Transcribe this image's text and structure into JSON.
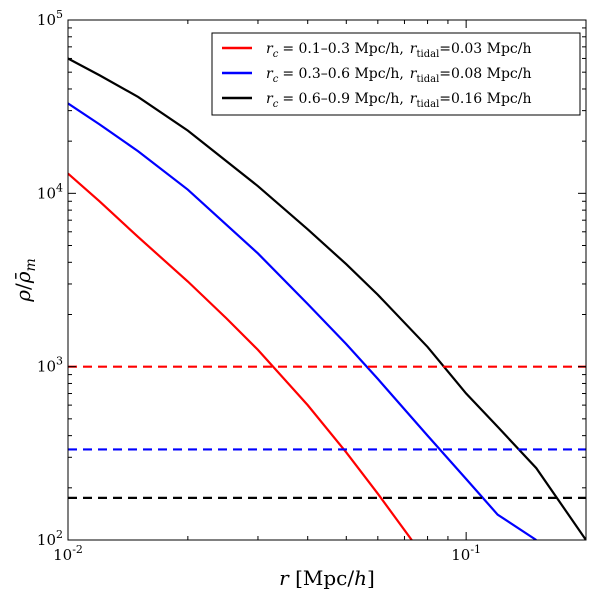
{
  "chart_data": {
    "type": "line",
    "xscale": "log",
    "yscale": "log",
    "xlim": [
      0.01,
      0.2
    ],
    "ylim": [
      100,
      100000
    ],
    "xlabel": "r [Mpc/h]",
    "ylabel": "ρ/ρ̄_m",
    "x_tick_labels": [
      {
        "value": 0.01,
        "base": "10",
        "exp": "-2"
      },
      {
        "value": 0.1,
        "base": "10",
        "exp": "-1"
      }
    ],
    "y_tick_labels": [
      {
        "value": 100,
        "base": "10",
        "exp": "2"
      },
      {
        "value": 1000,
        "base": "10",
        "exp": "3"
      },
      {
        "value": 10000,
        "base": "10",
        "exp": "4"
      },
      {
        "value": 100000,
        "base": "10",
        "exp": "5"
      }
    ],
    "legend_position": "top-right",
    "series": [
      {
        "name": "rc = 0.1–0.3 Mpc/h, rtidal = 0.03 Mpc/h",
        "legend_rc": "= 0.1–0.3 Mpc/h,",
        "legend_tidal": "=0.03 Mpc/h",
        "color": "#ff0000",
        "style": "solid",
        "x": [
          0.01,
          0.012,
          0.015,
          0.02,
          0.025,
          0.03,
          0.04,
          0.05,
          0.06,
          0.073
        ],
        "y": [
          13000,
          9000,
          5600,
          3100,
          1900,
          1250,
          600,
          320,
          185,
          100
        ]
      },
      {
        "name": "rc = 0.3–0.6 Mpc/h, rtidal = 0.08 Mpc/h",
        "legend_rc": "= 0.3–0.6 Mpc/h,",
        "legend_tidal": "=0.08 Mpc/h",
        "color": "#0000ff",
        "style": "solid",
        "x": [
          0.01,
          0.012,
          0.015,
          0.02,
          0.03,
          0.04,
          0.05,
          0.06,
          0.08,
          0.1,
          0.12,
          0.15
        ],
        "y": [
          33000,
          25000,
          17500,
          10500,
          4500,
          2300,
          1350,
          850,
          400,
          225,
          140,
          100
        ]
      },
      {
        "name": "rc = 0.6–0.9 Mpc/h, rtidal = 0.16 Mpc/h",
        "legend_rc": "= 0.6–0.9 Mpc/h,",
        "legend_tidal": "=0.16 Mpc/h",
        "color": "#000000",
        "style": "solid",
        "x": [
          0.01,
          0.012,
          0.015,
          0.02,
          0.03,
          0.04,
          0.05,
          0.06,
          0.08,
          0.1,
          0.12,
          0.15,
          0.2
        ],
        "y": [
          60000,
          48000,
          36000,
          23000,
          11000,
          6200,
          3900,
          2600,
          1300,
          700,
          450,
          260,
          100
        ]
      },
      {
        "name": "reference level red",
        "color": "#ff0000",
        "style": "dashed",
        "x": [
          0.01,
          0.2
        ],
        "y": [
          1000,
          1000
        ]
      },
      {
        "name": "reference level blue",
        "color": "#0000ff",
        "style": "dashed",
        "x": [
          0.01,
          0.2
        ],
        "y": [
          333,
          333
        ]
      },
      {
        "name": "reference level black",
        "color": "#000000",
        "style": "dashed",
        "x": [
          0.01,
          0.2
        ],
        "y": [
          175,
          175
        ]
      }
    ]
  }
}
